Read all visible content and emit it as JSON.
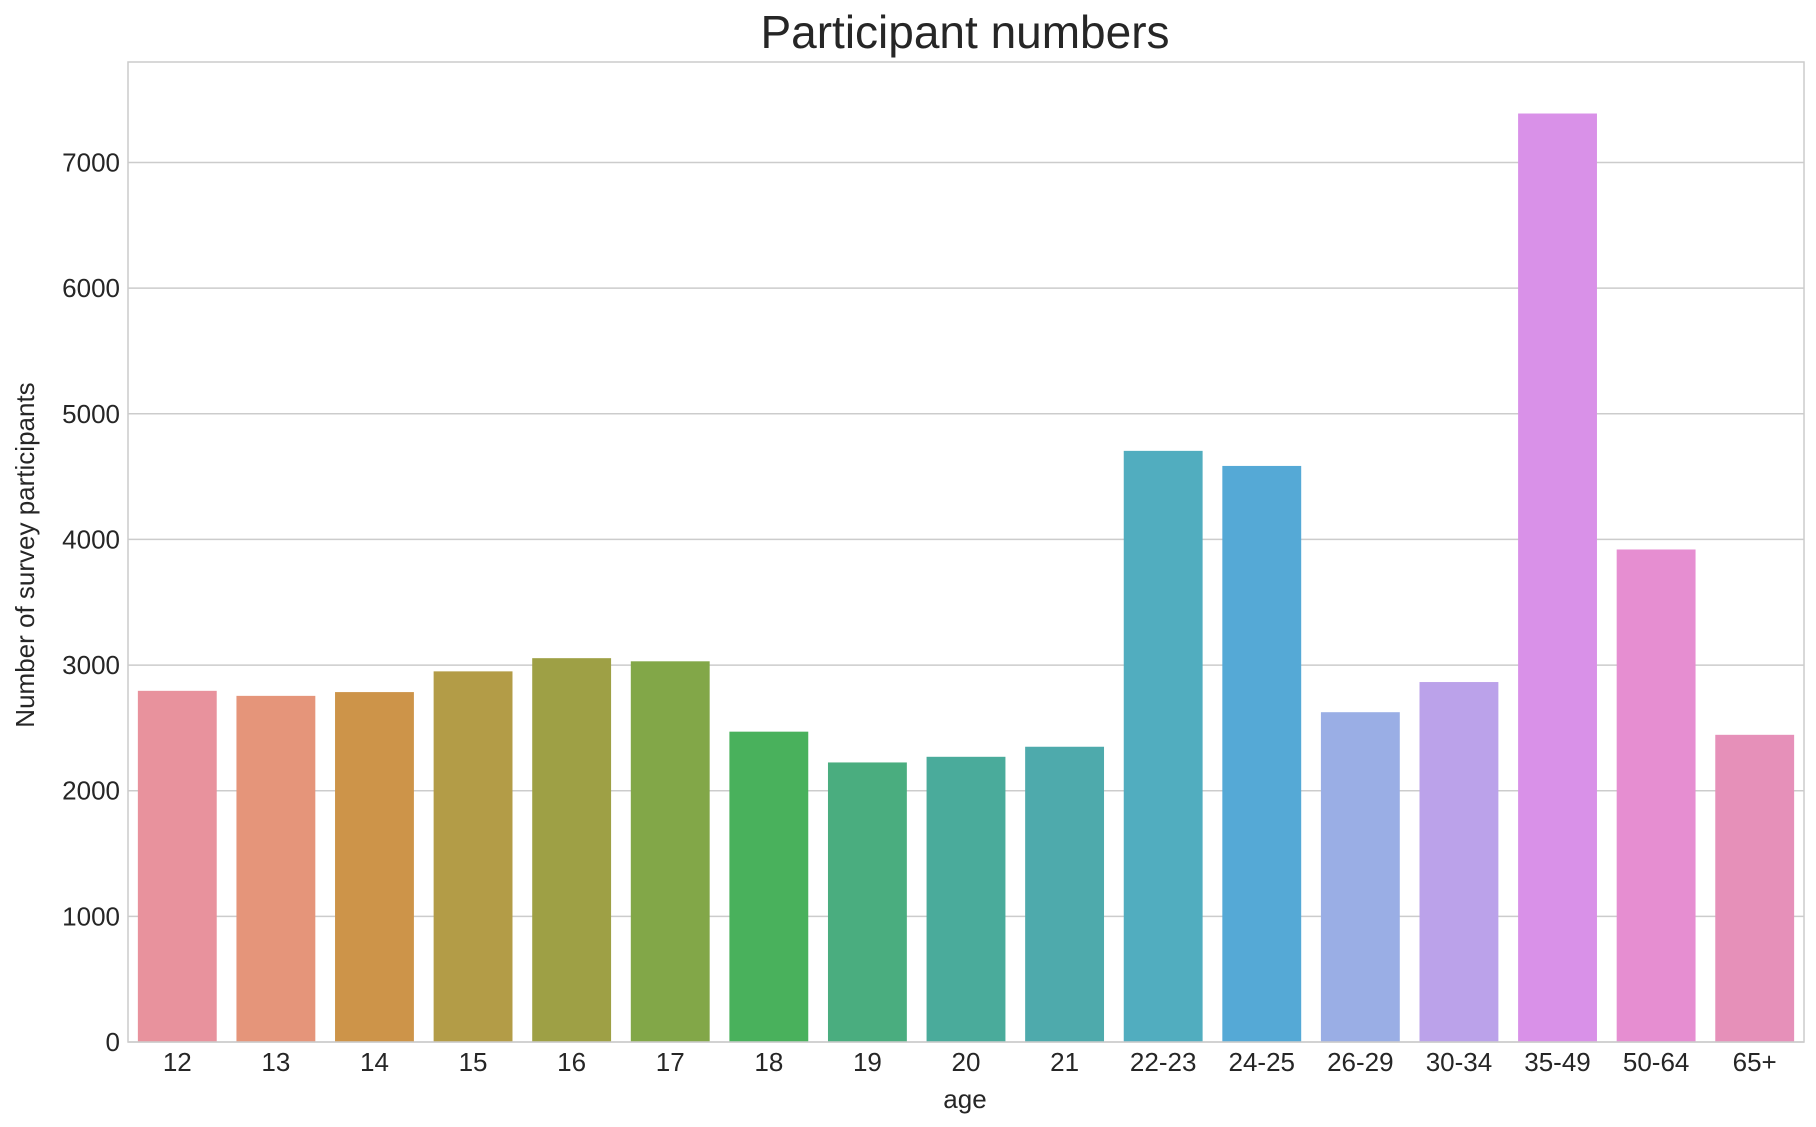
{
  "chart_data": {
    "type": "bar",
    "title": "Participant numbers",
    "xlabel": "age",
    "ylabel": "Number of survey participants",
    "categories": [
      "12",
      "13",
      "14",
      "15",
      "16",
      "17",
      "18",
      "19",
      "20",
      "21",
      "22-23",
      "24-25",
      "26-29",
      "30-34",
      "35-49",
      "50-64",
      "65+"
    ],
    "values": [
      2795,
      2755,
      2785,
      2950,
      3055,
      3030,
      2470,
      2225,
      2270,
      2350,
      4705,
      4585,
      2625,
      2865,
      7390,
      3920,
      2445
    ],
    "colors": [
      "#e8929d",
      "#e5957a",
      "#cd9449",
      "#b39c47",
      "#9ea045",
      "#82a748",
      "#49b15c",
      "#4aad7f",
      "#4aab9b",
      "#4eaaac",
      "#51adbf",
      "#55a9d6",
      "#9aaee5",
      "#bba2ea",
      "#d991e8",
      "#e68ed1",
      "#e690b9"
    ],
    "ylim": [
      0,
      7800
    ],
    "yticks": [
      0,
      1000,
      2000,
      3000,
      4000,
      5000,
      6000,
      7000
    ],
    "grid": "horizontal",
    "legend": "none"
  }
}
